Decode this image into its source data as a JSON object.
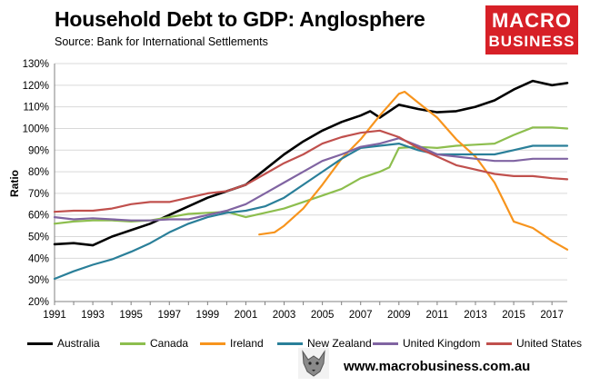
{
  "header": {
    "title": "Household Debt to GDP: Anglosphere",
    "source": "Source: Bank for International Settlements"
  },
  "logo": {
    "line1": "MACRO",
    "line2": "BUSINESS",
    "color": "#d72027"
  },
  "footer": {
    "website": "www.macrobusiness.com.au"
  },
  "chart_data": {
    "type": "line",
    "title": "Household Debt to GDP: Anglosphere",
    "xlabel": "",
    "ylabel": "Ratio",
    "xlim": [
      1991,
      2017.8
    ],
    "ylim": [
      20,
      130
    ],
    "x_ticks": [
      1991,
      1993,
      1995,
      1997,
      1999,
      2001,
      2003,
      2005,
      2007,
      2009,
      2011,
      2013,
      2015,
      2017
    ],
    "y_ticks": [
      20,
      30,
      40,
      50,
      60,
      70,
      80,
      90,
      100,
      110,
      120,
      130
    ],
    "y_tick_labels": [
      "20%",
      "30%",
      "40%",
      "50%",
      "60%",
      "70%",
      "80%",
      "90%",
      "100%",
      "110%",
      "120%",
      "130%"
    ],
    "grid": "horizontal",
    "legend_position": "bottom",
    "series": [
      {
        "name": "Australia",
        "color": "#000000",
        "points": [
          [
            1991,
            46.5
          ],
          [
            1992,
            47
          ],
          [
            1993,
            46
          ],
          [
            1994,
            50
          ],
          [
            1995,
            53
          ],
          [
            1996,
            56
          ],
          [
            1997,
            60
          ],
          [
            1998,
            64
          ],
          [
            1999,
            68
          ],
          [
            2000,
            71
          ],
          [
            2001,
            74
          ],
          [
            2002,
            81
          ],
          [
            2003,
            88
          ],
          [
            2004,
            94
          ],
          [
            2005,
            99
          ],
          [
            2006,
            103
          ],
          [
            2007,
            106
          ],
          [
            2007.5,
            108
          ],
          [
            2008,
            105
          ],
          [
            2008.5,
            108
          ],
          [
            2009,
            111
          ],
          [
            2010,
            109
          ],
          [
            2011,
            107.5
          ],
          [
            2012,
            108
          ],
          [
            2013,
            110
          ],
          [
            2014,
            113
          ],
          [
            2015,
            118
          ],
          [
            2016,
            122
          ],
          [
            2017,
            120
          ],
          [
            2017.8,
            121
          ]
        ]
      },
      {
        "name": "Canada",
        "color": "#8dbe4e",
        "points": [
          [
            1991,
            56
          ],
          [
            1992,
            57
          ],
          [
            1993,
            57.5
          ],
          [
            1994,
            57.5
          ],
          [
            1995,
            57
          ],
          [
            1996,
            57.5
          ],
          [
            1997,
            59
          ],
          [
            1998,
            60.5
          ],
          [
            1999,
            61
          ],
          [
            2000,
            61.5
          ],
          [
            2001,
            59
          ],
          [
            2002,
            61
          ],
          [
            2003,
            63
          ],
          [
            2004,
            66
          ],
          [
            2005,
            69
          ],
          [
            2006,
            72
          ],
          [
            2007,
            77
          ],
          [
            2008,
            80
          ],
          [
            2008.5,
            82
          ],
          [
            2009,
            91
          ],
          [
            2010,
            91.5
          ],
          [
            2011,
            91
          ],
          [
            2012,
            92
          ],
          [
            2013,
            92.5
          ],
          [
            2014,
            93
          ],
          [
            2015,
            97
          ],
          [
            2016,
            100.5
          ],
          [
            2017,
            100.5
          ],
          [
            2017.8,
            100
          ]
        ]
      },
      {
        "name": "Ireland",
        "color": "#f7941d",
        "points": [
          [
            2001.7,
            51
          ],
          [
            2002.5,
            52
          ],
          [
            2003,
            55
          ],
          [
            2004,
            63
          ],
          [
            2005,
            74
          ],
          [
            2006,
            86
          ],
          [
            2007,
            95
          ],
          [
            2008,
            106
          ],
          [
            2009,
            116
          ],
          [
            2009.3,
            117
          ],
          [
            2010,
            112
          ],
          [
            2011,
            105
          ],
          [
            2012,
            95
          ],
          [
            2013,
            87
          ],
          [
            2014,
            75
          ],
          [
            2014.5,
            66
          ],
          [
            2015,
            57
          ],
          [
            2016,
            54
          ],
          [
            2017,
            48
          ],
          [
            2017.8,
            44
          ]
        ]
      },
      {
        "name": "New Zealand",
        "color": "#2a7f99",
        "points": [
          [
            1991,
            30.5
          ],
          [
            1992,
            34
          ],
          [
            1993,
            37
          ],
          [
            1994,
            39.5
          ],
          [
            1995,
            43
          ],
          [
            1996,
            47
          ],
          [
            1997,
            52
          ],
          [
            1998,
            56
          ],
          [
            1999,
            59
          ],
          [
            2000,
            61
          ],
          [
            2001,
            62
          ],
          [
            2002,
            64
          ],
          [
            2003,
            68
          ],
          [
            2004,
            74
          ],
          [
            2005,
            80
          ],
          [
            2006,
            86
          ],
          [
            2007,
            91
          ],
          [
            2008,
            92
          ],
          [
            2009,
            93
          ],
          [
            2010,
            90
          ],
          [
            2011,
            88
          ],
          [
            2012,
            88
          ],
          [
            2013,
            88
          ],
          [
            2014,
            88
          ],
          [
            2015,
            90
          ],
          [
            2016,
            92
          ],
          [
            2017,
            92
          ],
          [
            2017.8,
            92
          ]
        ]
      },
      {
        "name": "United Kingdom",
        "color": "#8064a2",
        "points": [
          [
            1991,
            59
          ],
          [
            1992,
            58
          ],
          [
            1993,
            58.5
          ],
          [
            1994,
            58
          ],
          [
            1995,
            57.5
          ],
          [
            1996,
            57.5
          ],
          [
            1997,
            58
          ],
          [
            1998,
            58
          ],
          [
            1999,
            60
          ],
          [
            2000,
            62
          ],
          [
            2001,
            65
          ],
          [
            2002,
            70
          ],
          [
            2003,
            75
          ],
          [
            2004,
            80
          ],
          [
            2005,
            85
          ],
          [
            2006,
            88
          ],
          [
            2007,
            91.5
          ],
          [
            2008,
            93
          ],
          [
            2009,
            95.5
          ],
          [
            2010,
            92
          ],
          [
            2011,
            88
          ],
          [
            2012,
            87
          ],
          [
            2013,
            86
          ],
          [
            2014,
            85
          ],
          [
            2015,
            85
          ],
          [
            2016,
            86
          ],
          [
            2017,
            86
          ],
          [
            2017.8,
            86
          ]
        ]
      },
      {
        "name": "United States",
        "color": "#c0504d",
        "points": [
          [
            1991,
            61.5
          ],
          [
            1992,
            62
          ],
          [
            1993,
            62
          ],
          [
            1994,
            63
          ],
          [
            1995,
            65
          ],
          [
            1996,
            66
          ],
          [
            1997,
            66
          ],
          [
            1998,
            68
          ],
          [
            1999,
            70
          ],
          [
            2000,
            71
          ],
          [
            2001,
            74
          ],
          [
            2002,
            79
          ],
          [
            2003,
            84
          ],
          [
            2004,
            88
          ],
          [
            2005,
            93
          ],
          [
            2006,
            96
          ],
          [
            2007,
            98
          ],
          [
            2008,
            99
          ],
          [
            2009,
            96
          ],
          [
            2010,
            91
          ],
          [
            2011,
            87
          ],
          [
            2012,
            83
          ],
          [
            2013,
            81
          ],
          [
            2014,
            79
          ],
          [
            2015,
            78
          ],
          [
            2016,
            78
          ],
          [
            2017,
            77
          ],
          [
            2017.8,
            76.5
          ]
        ]
      }
    ]
  }
}
